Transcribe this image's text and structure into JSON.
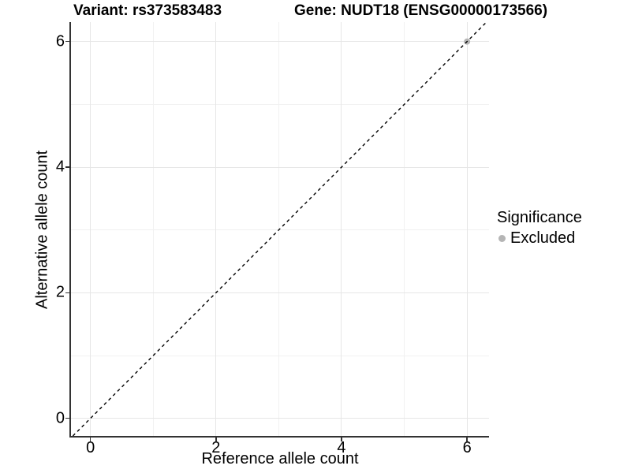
{
  "chart_data": {
    "type": "scatter",
    "title_left": "Variant: rs373583483",
    "title_right": "Gene: NUDT18 (ENSG00000173566)",
    "xlabel": "Reference allele count",
    "ylabel": "Alternative allele count",
    "xlim": [
      -0.31,
      6.35
    ],
    "ylim": [
      -0.28,
      6.31
    ],
    "x_ticks": [
      0,
      2,
      4,
      6
    ],
    "y_ticks": [
      0,
      2,
      4,
      6
    ],
    "x_minor_ticks": [
      1,
      3,
      5
    ],
    "y_minor_ticks": [
      1,
      3,
      5
    ],
    "grid": "major+minor",
    "legend_position": "right",
    "points": [
      {
        "x": 6,
        "y": 6,
        "significance": "Excluded"
      }
    ],
    "reference_line": {
      "kind": "identity",
      "slope": 1,
      "intercept": 0,
      "style": "dashed"
    },
    "legend": {
      "title": "Significance",
      "items": [
        {
          "label": "Excluded",
          "color": "#b5b5b5"
        }
      ]
    },
    "colors": {
      "point_excluded": "#b5b5b5",
      "reference_line": "#000000",
      "axis_line": "#333333",
      "grid_major": "#e6e6e6",
      "grid_minor": "#f1f1f1",
      "text": "#000000",
      "background": "#ffffff"
    }
  }
}
